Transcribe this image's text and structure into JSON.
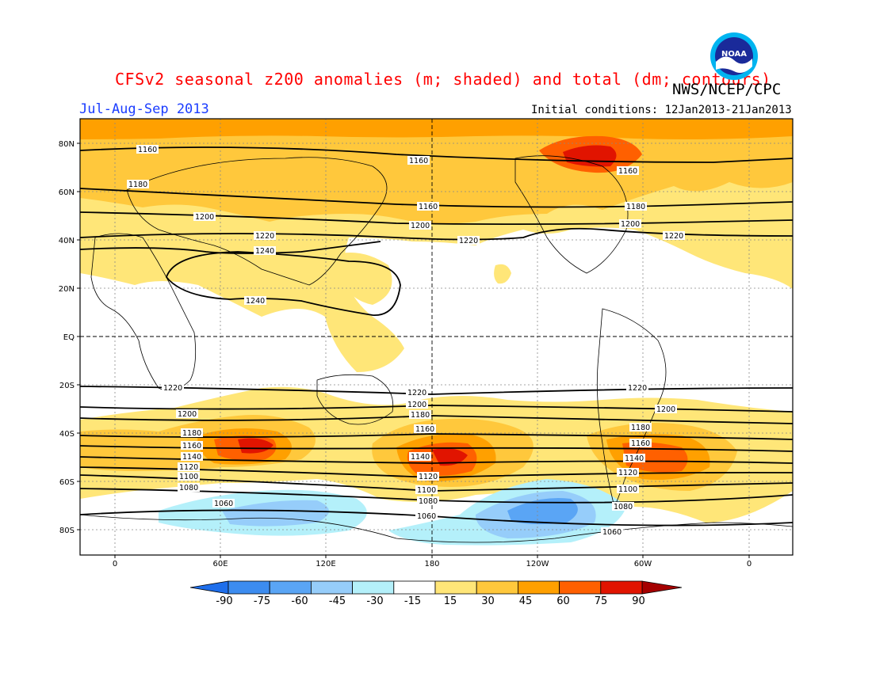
{
  "header": {
    "title": "CFSv2 seasonal z200 anomalies (m; shaded) and total (dm; contours)",
    "agency": "NWS/NCEP/CPC",
    "period": "Jul-Aug-Sep 2013",
    "initial_conditions": "Initial conditions: 12Jan2013-21Jan2013",
    "logo_icon": "noaa-logo-icon",
    "logo_text": "NOAA"
  },
  "map": {
    "lat_labels": [
      "80N",
      "60N",
      "40N",
      "20N",
      "EQ",
      "20S",
      "40S",
      "60S",
      "80S"
    ],
    "lon_labels": [
      "0",
      "60E",
      "120E",
      "180",
      "120W",
      "60W",
      "0"
    ]
  },
  "colorbar": {
    "ticks": [
      "-90",
      "-75",
      "-60",
      "-45",
      "-30",
      "-15",
      "15",
      "30",
      "45",
      "60",
      "75",
      "90"
    ],
    "colors": [
      "#1e6eeb",
      "#3c8cf0",
      "#5aa5f5",
      "#96cdfa",
      "#b4f0fa",
      "#ffffff",
      "#ffe678",
      "#ffc83c",
      "#ffa000",
      "#ff6000",
      "#e11400",
      "#a50000"
    ],
    "low_end_color": "#1e6eeb",
    "high_end_color": "#a50000"
  },
  "contours": [
    {
      "value": "1160",
      "label": "1160"
    },
    {
      "value": "1180",
      "label": "1180"
    },
    {
      "value": "1200",
      "label": "1200"
    },
    {
      "value": "1220",
      "label": "1220"
    },
    {
      "value": "1240",
      "label": "1240"
    },
    {
      "value": "1100",
      "label": "1100"
    },
    {
      "value": "1120",
      "label": "1120"
    },
    {
      "value": "1140",
      "label": "1140"
    },
    {
      "value": "1080",
      "label": "1080"
    },
    {
      "value": "1060",
      "label": "1060"
    }
  ]
}
